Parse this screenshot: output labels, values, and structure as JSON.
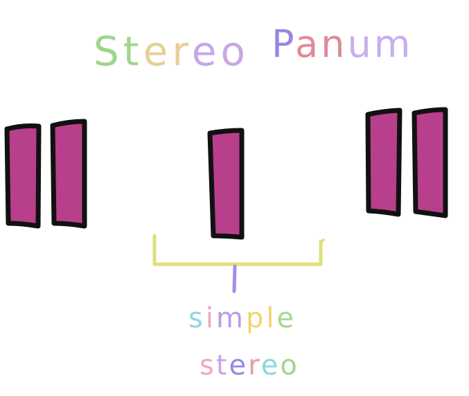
{
  "title": {
    "word1": [
      "S",
      "t",
      "e",
      "r",
      "e",
      "o"
    ],
    "word2": [
      "P",
      "a",
      "n",
      "u",
      "m"
    ],
    "word1_colors": [
      "#9fd68a",
      "#9fd68a",
      "#e8cf95",
      "#e8cf95",
      "#c9a6e6",
      "#c9a6e6"
    ],
    "word2_colors": [
      "#9a86e0",
      "#e08a97",
      "#e08a97",
      "#c8aef0",
      "#c8aef0"
    ]
  },
  "annotation": {
    "line1": [
      "s",
      "i",
      "m",
      "p",
      "l",
      "e"
    ],
    "line1_colors": [
      "#8fd6e3",
      "#f0a6c2",
      "#b99ce6",
      "#f2d56a",
      "#f2d56a",
      "#a6d990"
    ],
    "line2": [
      "s",
      "t",
      "e",
      "r",
      "e",
      "o"
    ],
    "line2_colors": [
      "#f0a6c2",
      "#c6a6e8",
      "#9a86e0",
      "#e89aa8",
      "#8fd6e3",
      "#9fd68a"
    ]
  },
  "colors": {
    "bar_fill": "#b83f8c",
    "bar_stroke": "#111111",
    "bracket": "#dfe07a",
    "stem": "#a98ae8"
  },
  "groups": [
    {
      "name": "left-pair",
      "count": 2
    },
    {
      "name": "center-single",
      "count": 1
    },
    {
      "name": "right-pair",
      "count": 2
    }
  ]
}
